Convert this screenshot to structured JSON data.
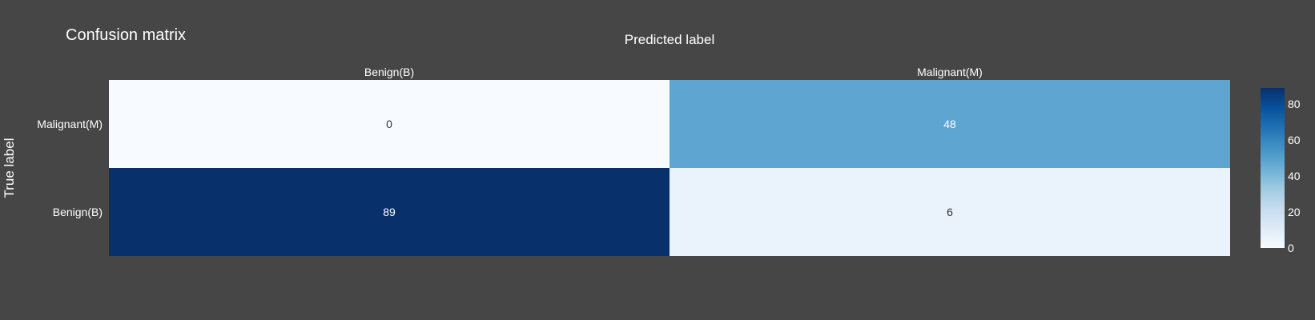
{
  "chart_data": {
    "type": "heatmap",
    "title": "Confusion matrix",
    "xlabel": "Predicted label",
    "ylabel": "True label",
    "x_categories": [
      "Benign(B)",
      "Malignant(M)"
    ],
    "y_categories_top_to_bottom": [
      "Malignant(M)",
      "Benign(B)"
    ],
    "z": [
      [
        0,
        48
      ],
      [
        89,
        6
      ]
    ],
    "colorscale": "Blues",
    "zmin": 0,
    "zmax": 89,
    "colorbar_ticks": [
      0,
      20,
      40,
      60,
      80
    ]
  },
  "colors": {
    "background": "#464646",
    "text": "#ffffff",
    "scale_low": "#f7fbff",
    "scale_high": "#08306b"
  }
}
